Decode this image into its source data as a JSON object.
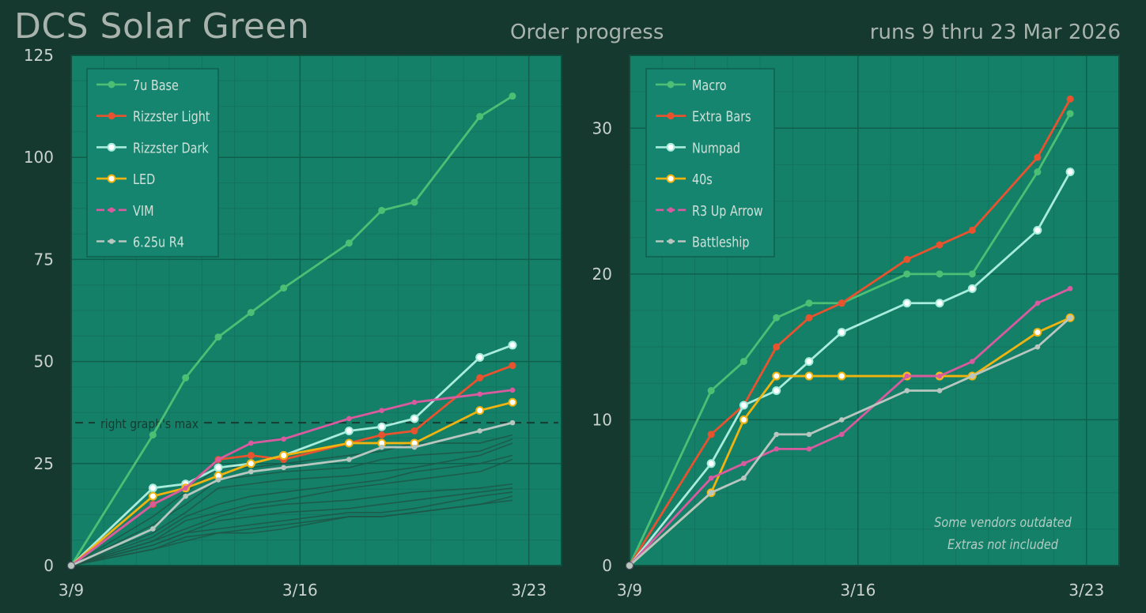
{
  "header": {
    "title": "DCS Solar Green",
    "subtitle": "Order progress",
    "date_range": "runs 9 thru 23 Mar 2026"
  },
  "chart_data": [
    {
      "type": "line",
      "x_ticks": [
        "3/9",
        "3/16",
        "3/23"
      ],
      "x_tick_days": [
        0,
        7,
        14
      ],
      "xlim": [
        0,
        15
      ],
      "ylim": [
        0,
        125
      ],
      "y_ticks": [
        0,
        25,
        50,
        75,
        100,
        125
      ],
      "grid": true,
      "legend": "top-left",
      "series": [
        {
          "name": "7u Base",
          "color": "#4cbf74",
          "marker": "filled",
          "x": [
            0,
            2.5,
            3.5,
            4.5,
            5.5,
            6.5,
            8.5,
            9.5,
            10.5,
            12.5,
            13.5
          ],
          "values": [
            0,
            32,
            46,
            56,
            62,
            68,
            79,
            87,
            89,
            110,
            115
          ]
        },
        {
          "name": "Rizzster Light",
          "color": "#e8532f",
          "marker": "filled",
          "x": [
            0,
            2.5,
            3.5,
            4.5,
            5.5,
            6.5,
            8.5,
            9.5,
            10.5,
            12.5,
            13.5
          ],
          "values": [
            0,
            15,
            19,
            26,
            27,
            26,
            30,
            32,
            33,
            46,
            49
          ]
        },
        {
          "name": "Rizzster Dark",
          "color": "#a7ecdc",
          "marker": "open",
          "x": [
            0,
            2.5,
            3.5,
            4.5,
            5.5,
            6.5,
            8.5,
            9.5,
            10.5,
            12.5,
            13.5
          ],
          "values": [
            0,
            19,
            20,
            24,
            25,
            27,
            33,
            34,
            36,
            51,
            54
          ]
        },
        {
          "name": "LED",
          "color": "#f0b30f",
          "marker": "open",
          "x": [
            0,
            2.5,
            3.5,
            4.5,
            5.5,
            6.5,
            8.5,
            9.5,
            10.5,
            12.5,
            13.5
          ],
          "values": [
            0,
            17,
            19,
            22,
            25,
            27,
            30,
            30,
            30,
            38,
            40
          ]
        },
        {
          "name": "VIM",
          "color": "#d85ba0",
          "marker": "small",
          "x": [
            0,
            2.5,
            3.5,
            4.5,
            5.5,
            6.5,
            8.5,
            9.5,
            10.5,
            12.5,
            13.5
          ],
          "values": [
            0,
            15,
            19,
            26,
            30,
            31,
            36,
            38,
            40,
            42,
            43
          ]
        },
        {
          "name": "6.25u R4",
          "color": "#b8c6c0",
          "marker": "small",
          "x": [
            0,
            2.5,
            3.5,
            4.5,
            5.5,
            6.5,
            8.5,
            9.5,
            10.5,
            12.5,
            13.5
          ],
          "values": [
            0,
            9,
            17,
            21,
            23,
            24,
            26,
            29,
            29,
            33,
            35
          ]
        }
      ],
      "background_series": [
        {
          "x": [
            0,
            2.5,
            3.5,
            4.5,
            5.5,
            6.5,
            8.5,
            9.5,
            10.5,
            12.5,
            13.5
          ],
          "values": [
            0,
            12,
            18,
            24,
            24,
            25,
            27,
            28,
            30,
            30,
            32
          ]
        },
        {
          "x": [
            0,
            2.5,
            3.5,
            4.5,
            5.5,
            6.5,
            8.5,
            9.5,
            10.5,
            12.5,
            13.5
          ],
          "values": [
            0,
            10,
            15,
            21,
            22,
            23,
            24,
            26,
            27,
            28,
            31
          ]
        },
        {
          "x": [
            0,
            2.5,
            3.5,
            4.5,
            5.5,
            6.5,
            8.5,
            9.5,
            10.5,
            12.5,
            13.5
          ],
          "values": [
            0,
            8,
            13,
            19,
            20,
            21,
            22,
            23,
            24,
            27,
            30
          ]
        },
        {
          "x": [
            0,
            2.5,
            3.5,
            4.5,
            5.5,
            6.5,
            8.5,
            9.5,
            10.5,
            12.5,
            13.5
          ],
          "values": [
            0,
            7,
            12,
            15,
            17,
            18,
            20,
            21,
            23,
            25,
            27
          ]
        },
        {
          "x": [
            0,
            2.5,
            3.5,
            4.5,
            5.5,
            6.5,
            8.5,
            9.5,
            10.5,
            12.5,
            13.5
          ],
          "values": [
            0,
            6,
            11,
            13,
            15,
            16,
            19,
            20,
            21,
            23,
            26
          ]
        },
        {
          "x": [
            0,
            2.5,
            3.5,
            4.5,
            5.5,
            6.5,
            8.5,
            9.5,
            10.5,
            12.5,
            13.5
          ],
          "values": [
            0,
            6,
            9,
            12,
            14,
            15,
            16,
            17,
            18,
            19,
            20
          ]
        },
        {
          "x": [
            0,
            2.5,
            3.5,
            4.5,
            5.5,
            6.5,
            8.5,
            9.5,
            10.5,
            12.5,
            13.5
          ],
          "values": [
            0,
            5,
            8,
            11,
            12,
            13,
            14,
            15,
            16,
            18,
            19
          ]
        },
        {
          "x": [
            0,
            2.5,
            3.5,
            4.5,
            5.5,
            6.5,
            8.5,
            9.5,
            10.5,
            12.5,
            13.5
          ],
          "values": [
            0,
            5,
            8,
            9,
            10,
            11,
            13,
            13,
            14,
            17,
            18
          ]
        },
        {
          "x": [
            0,
            2.5,
            3.5,
            4.5,
            5.5,
            6.5,
            8.5,
            9.5,
            10.5,
            12.5,
            13.5
          ],
          "values": [
            0,
            4,
            7,
            8,
            8,
            9,
            12,
            12,
            13,
            15,
            17
          ]
        },
        {
          "x": [
            0,
            2.5,
            3.5,
            4.5,
            5.5,
            6.5,
            8.5,
            9.5,
            10.5,
            12.5,
            13.5
          ],
          "values": [
            0,
            4,
            6,
            8,
            9,
            10,
            12,
            12,
            13,
            15,
            16
          ]
        }
      ],
      "reference_line": {
        "value": 35,
        "label": "right graph's max"
      }
    },
    {
      "type": "line",
      "x_ticks": [
        "3/9",
        "3/16",
        "3/23"
      ],
      "x_tick_days": [
        0,
        7,
        14
      ],
      "xlim": [
        0,
        15
      ],
      "ylim": [
        0,
        35
      ],
      "y_ticks": [
        0,
        10,
        20,
        30
      ],
      "grid": true,
      "legend": "top-left",
      "series": [
        {
          "name": "Macro",
          "color": "#4cbf74",
          "marker": "filled",
          "x": [
            0,
            2.5,
            3.5,
            4.5,
            5.5,
            6.5,
            8.5,
            9.5,
            10.5,
            12.5,
            13.5
          ],
          "values": [
            0,
            12,
            14,
            17,
            18,
            18,
            20,
            20,
            20,
            27,
            31
          ]
        },
        {
          "name": "Extra Bars",
          "color": "#e8532f",
          "marker": "filled",
          "x": [
            0,
            2.5,
            3.5,
            4.5,
            5.5,
            6.5,
            8.5,
            9.5,
            10.5,
            12.5,
            13.5
          ],
          "values": [
            0,
            9,
            11,
            15,
            17,
            18,
            21,
            22,
            23,
            28,
            32
          ]
        },
        {
          "name": "Numpad",
          "color": "#a7ecdc",
          "marker": "open",
          "x": [
            0,
            2.5,
            3.5,
            4.5,
            5.5,
            6.5,
            8.5,
            9.5,
            10.5,
            12.5,
            13.5
          ],
          "values": [
            0,
            7,
            11,
            12,
            14,
            16,
            18,
            18,
            19,
            23,
            27
          ]
        },
        {
          "name": "40s",
          "color": "#f0b30f",
          "marker": "open",
          "x": [
            0,
            2.5,
            3.5,
            4.5,
            5.5,
            6.5,
            8.5,
            9.5,
            10.5,
            12.5,
            13.5
          ],
          "values": [
            0,
            5,
            10,
            13,
            13,
            13,
            13,
            13,
            13,
            16,
            17
          ]
        },
        {
          "name": "R3 Up Arrow",
          "color": "#d85ba0",
          "marker": "small",
          "x": [
            0,
            2.5,
            3.5,
            4.5,
            5.5,
            6.5,
            8.5,
            9.5,
            10.5,
            12.5,
            13.5
          ],
          "values": [
            0,
            6,
            7,
            8,
            8,
            9,
            13,
            13,
            14,
            18,
            19
          ]
        },
        {
          "name": "Battleship",
          "color": "#b8c6c0",
          "marker": "small",
          "x": [
            0,
            2.5,
            3.5,
            4.5,
            5.5,
            6.5,
            8.5,
            9.5,
            10.5,
            12.5,
            13.5
          ],
          "values": [
            0,
            5,
            6,
            9,
            9,
            10,
            12,
            12,
            13,
            15,
            17
          ]
        }
      ],
      "annotation": [
        "Some vendors outdated",
        "Extras not included"
      ]
    }
  ],
  "colors": {
    "page_bg": "#15392f",
    "plot_bg": "#148068",
    "grid_major": "#0f5f4c",
    "grid_minor": "#137360",
    "text": "#c9d2cd",
    "legend_bg": "#168570",
    "legend_text": "#cfe0d8"
  }
}
